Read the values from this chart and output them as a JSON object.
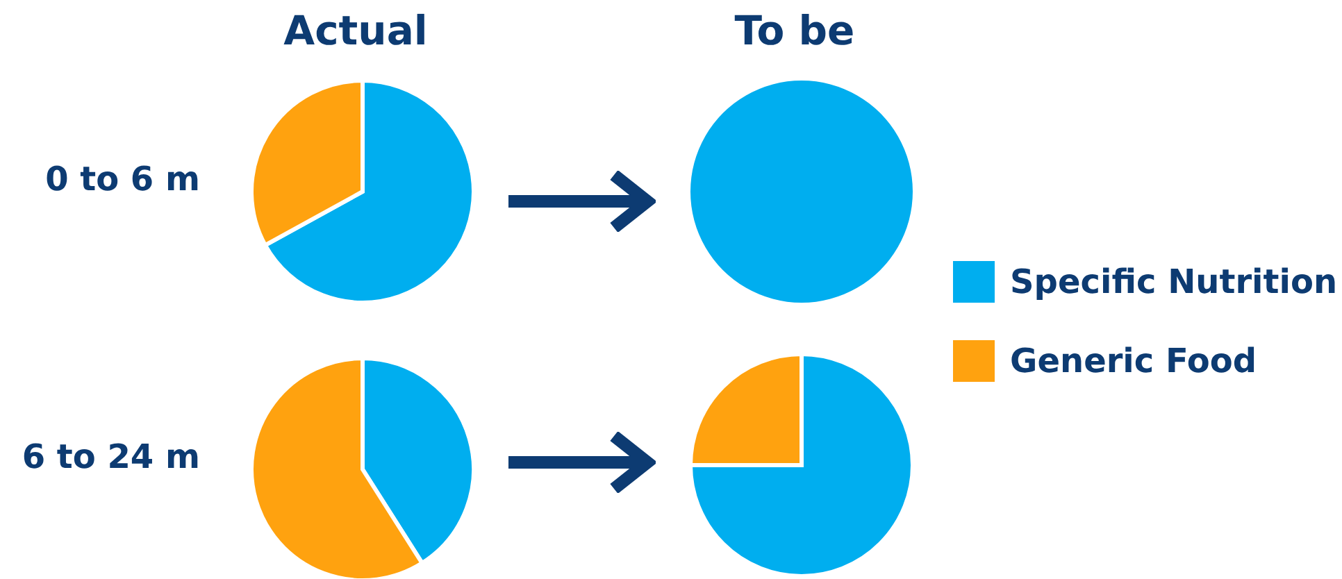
{
  "chart_data": [
    {
      "type": "pie",
      "title": "Actual",
      "ylabel": "0 to 6 m",
      "categories": [
        "Specific Nutrition",
        "Generic Food"
      ],
      "values": [
        67,
        33
      ],
      "colors": [
        "#00aeef",
        "#ffa20f"
      ],
      "legend": "right"
    },
    {
      "type": "pie",
      "title": "To be",
      "categories": [
        null,
        null
      ],
      "values": [
        100,
        0
      ],
      "colors": [
        "#00aeef",
        "#ffa20f"
      ]
    },
    {
      "type": "pie",
      "ylabel": "6 to 24 m",
      "categories": [
        null,
        null
      ],
      "values": [
        41,
        59
      ],
      "colors": [
        "#00aeef",
        "#ffa20f"
      ]
    },
    {
      "type": "pie",
      "categories": [
        null,
        null
      ],
      "values": [
        75,
        25
      ],
      "colors": [
        "#00aeef",
        "#ffa20f"
      ]
    }
  ]
}
